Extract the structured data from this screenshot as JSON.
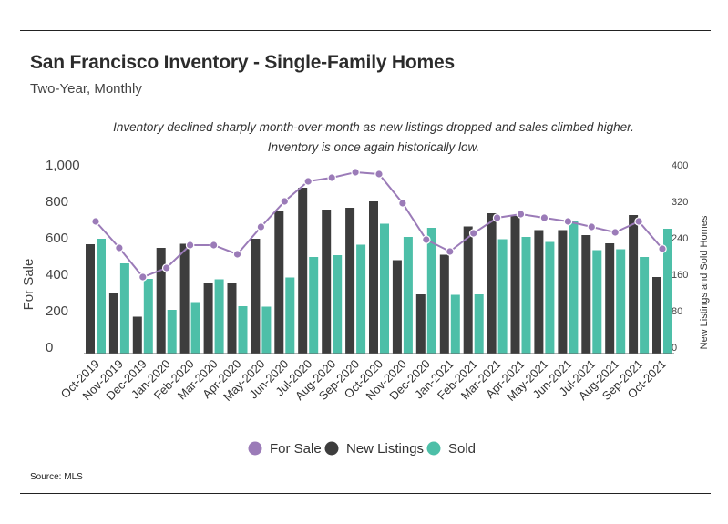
{
  "header": {
    "title": "San Francisco Inventory - Single-Family Homes",
    "subtitle": "Two-Year, Monthly",
    "annotation": "Inventory declined sharply month-over-month as new listings dropped and sales climbed higher. Inventory is once again historically low."
  },
  "footer": {
    "source": "Source:  MLS"
  },
  "chart_data": {
    "type": "bar",
    "categories": [
      "Oct-2019",
      "Nov-2019",
      "Dec-2019",
      "Jan-2020",
      "Feb-2020",
      "Mar-2020",
      "Apr-2020",
      "May-2020",
      "Jun-2020",
      "Jul-2020",
      "Aug-2020",
      "Sep-2020",
      "Oct-2020",
      "Nov-2020",
      "Dec-2020",
      "Jan-2021",
      "Feb-2021",
      "Mar-2021",
      "Apr-2021",
      "May-2021",
      "Jun-2021",
      "Jul-2021",
      "Aug-2021",
      "Sep-2021",
      "Oct-2021"
    ],
    "ylabel": "For Sale",
    "y2label": "New Listings and Sold Homes",
    "ylim": [
      0,
      1000
    ],
    "y2lim": [
      0,
      400
    ],
    "yticks": [
      "0",
      "200",
      "400",
      "600",
      "800",
      "1,000"
    ],
    "y2ticks": [
      "0",
      "80",
      "160",
      "240",
      "320",
      "400"
    ],
    "series": [
      {
        "name": "For Sale",
        "type": "line",
        "axis": "left",
        "color": "#9b7bb8",
        "values": [
          725,
          580,
          420,
          470,
          595,
          595,
          545,
          695,
          835,
          945,
          965,
          995,
          985,
          825,
          625,
          560,
          660,
          745,
          765,
          745,
          725,
          695,
          665,
          725,
          575
        ]
      },
      {
        "name": "New Listings",
        "type": "bar",
        "axis": "right",
        "color": "#3d3d3d",
        "values": [
          240,
          134,
          81,
          232,
          241,
          154,
          156,
          252,
          314,
          364,
          316,
          320,
          334,
          205,
          130,
          217,
          279,
          308,
          302,
          271,
          271,
          260,
          242,
          304,
          168
        ]
      },
      {
        "name": "Sold",
        "type": "bar",
        "axis": "right",
        "color": "#4dbfa8",
        "values": [
          252,
          198,
          164,
          96,
          113,
          163,
          104,
          103,
          167,
          212,
          216,
          239,
          285,
          256,
          276,
          129,
          130,
          251,
          256,
          245,
          290,
          227,
          229,
          212,
          274
        ]
      }
    ],
    "legend": {
      "position": "bottom"
    },
    "grid": false
  }
}
